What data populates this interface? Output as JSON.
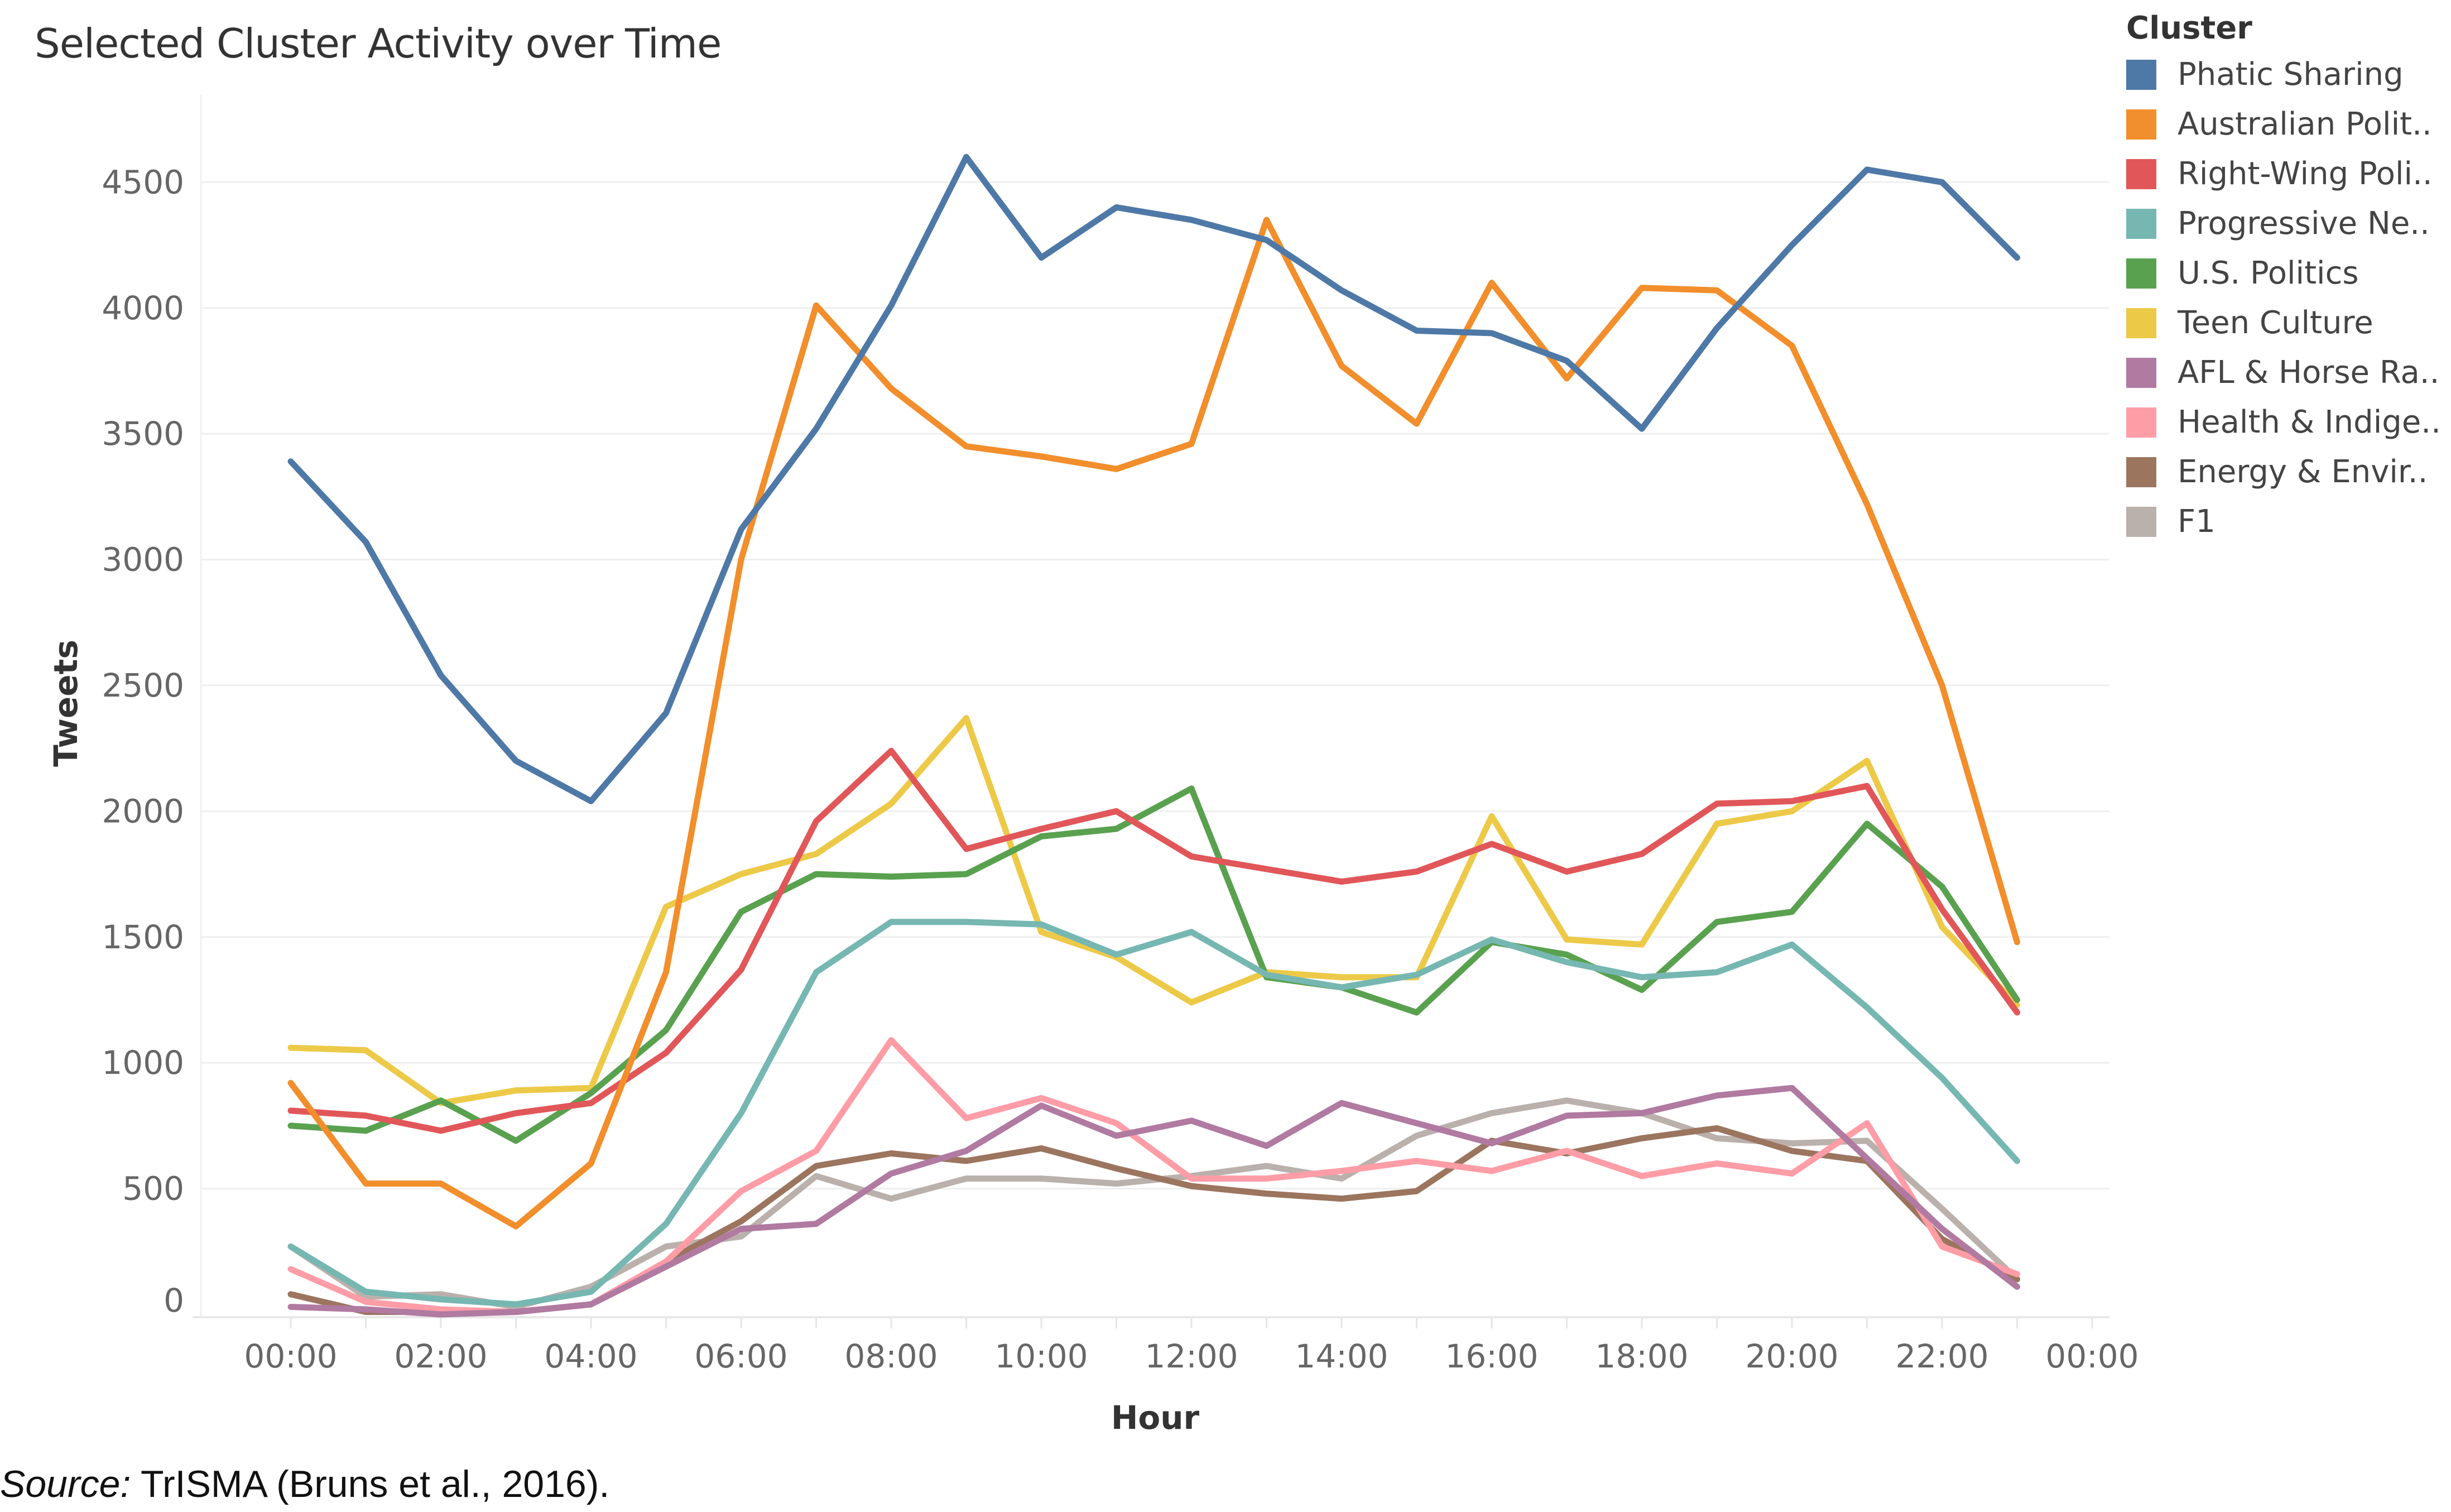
{
  "title": "Selected Cluster Activity over Time",
  "source": {
    "prefix": "Source:",
    "text": " TrISMA (Bruns et al., 2016)."
  },
  "legend": {
    "title": "Cluster",
    "items": [
      {
        "label": "Phatic Sharing",
        "color": "#4e79a7"
      },
      {
        "label": "Australian Polit..",
        "color": "#f28e2b"
      },
      {
        "label": "Right-Wing Poli..",
        "color": "#e15759"
      },
      {
        "label": "Progressive Ne..",
        "color": "#76b7b2"
      },
      {
        "label": "U.S. Politics",
        "color": "#59a14f"
      },
      {
        "label": "Teen Culture",
        "color": "#edc948"
      },
      {
        "label": "AFL & Horse Ra..",
        "color": "#b07aa1"
      },
      {
        "label": "Health & Indige..",
        "color": "#ff9da7"
      },
      {
        "label": "Energy & Envir..",
        "color": "#9c755f"
      },
      {
        "label": "F1",
        "color": "#bab0ac"
      }
    ]
  },
  "chart_data": {
    "type": "line",
    "title": "Selected Cluster Activity over Time",
    "xlabel": "Hour",
    "ylabel": "Tweets",
    "ylim": [
      0,
      4800
    ],
    "yticks": [
      0,
      500,
      1000,
      1500,
      2000,
      2500,
      3000,
      3500,
      4000,
      4500
    ],
    "xtick_labels": [
      "00:00",
      "02:00",
      "04:00",
      "06:00",
      "08:00",
      "10:00",
      "12:00",
      "14:00",
      "16:00",
      "18:00",
      "20:00",
      "22:00",
      "00:00"
    ],
    "grid": true,
    "legend_position": "right",
    "x": [
      "00:00",
      "01:00",
      "02:00",
      "03:00",
      "04:00",
      "05:00",
      "06:00",
      "07:00",
      "08:00",
      "09:00",
      "10:00",
      "11:00",
      "12:00",
      "13:00",
      "14:00",
      "15:00",
      "16:00",
      "17:00",
      "18:00",
      "19:00",
      "20:00",
      "21:00",
      "22:00",
      "23:00"
    ],
    "series": [
      {
        "name": "Phatic Sharing",
        "color": "#4e79a7",
        "values": [
          3390,
          3070,
          2540,
          2200,
          2040,
          2390,
          3120,
          3520,
          4010,
          4600,
          4200,
          4400,
          4350,
          4270,
          4070,
          3910,
          3900,
          3790,
          3520,
          3920,
          4250,
          4550,
          4500,
          4200
        ]
      },
      {
        "name": "Australian Politics",
        "color": "#f28e2b",
        "values": [
          920,
          520,
          520,
          350,
          600,
          1360,
          3000,
          4010,
          3680,
          3450,
          3410,
          3360,
          3460,
          4350,
          3770,
          3540,
          4100,
          3720,
          4080,
          4070,
          3850,
          3220,
          2500,
          1480
        ]
      },
      {
        "name": "Right-Wing Politics",
        "color": "#e15759",
        "values": [
          810,
          790,
          730,
          800,
          840,
          1040,
          1370,
          1960,
          2240,
          1850,
          1930,
          2000,
          1820,
          1770,
          1720,
          1760,
          1870,
          1760,
          1830,
          2030,
          2040,
          2100,
          1610,
          1200
        ]
      },
      {
        "name": "Progressive News",
        "color": "#76b7b2",
        "values": [
          270,
          90,
          60,
          40,
          90,
          360,
          800,
          1360,
          1560,
          1560,
          1550,
          1430,
          1520,
          1350,
          1300,
          1350,
          1490,
          1400,
          1340,
          1360,
          1470,
          1220,
          940,
          610
        ]
      },
      {
        "name": "U.S. Politics",
        "color": "#59a14f",
        "values": [
          750,
          730,
          850,
          690,
          880,
          1130,
          1600,
          1750,
          1740,
          1750,
          1900,
          1930,
          2090,
          1340,
          1300,
          1200,
          1480,
          1430,
          1290,
          1560,
          1600,
          1950,
          1700,
          1250
        ]
      },
      {
        "name": "Teen Culture",
        "color": "#edc948",
        "values": [
          1060,
          1050,
          840,
          890,
          900,
          1620,
          1750,
          1830,
          2030,
          2370,
          1520,
          1420,
          1240,
          1360,
          1340,
          1340,
          1980,
          1490,
          1470,
          1950,
          2000,
          2200,
          1540,
          1230
        ]
      },
      {
        "name": "AFL & Horse Racing",
        "color": "#b07aa1",
        "values": [
          30,
          20,
          0,
          10,
          40,
          190,
          340,
          360,
          560,
          650,
          830,
          710,
          770,
          670,
          840,
          760,
          680,
          790,
          800,
          870,
          900,
          620,
          340,
          110
        ]
      },
      {
        "name": "Health & Indigenous",
        "color": "#ff9da7",
        "values": [
          180,
          50,
          20,
          10,
          40,
          210,
          490,
          650,
          1090,
          780,
          860,
          760,
          540,
          540,
          570,
          610,
          570,
          650,
          550,
          600,
          560,
          760,
          270,
          160
        ]
      },
      {
        "name": "Energy & Environment",
        "color": "#9c755f",
        "values": [
          80,
          10,
          10,
          10,
          40,
          210,
          370,
          590,
          640,
          610,
          660,
          580,
          510,
          480,
          460,
          490,
          690,
          640,
          700,
          740,
          650,
          610,
          300,
          140
        ]
      },
      {
        "name": "F1",
        "color": "#bab0ac",
        "values": [
          270,
          70,
          80,
          30,
          110,
          270,
          310,
          550,
          460,
          540,
          540,
          520,
          550,
          590,
          540,
          710,
          800,
          850,
          800,
          700,
          680,
          690,
          420,
          140
        ]
      }
    ]
  }
}
